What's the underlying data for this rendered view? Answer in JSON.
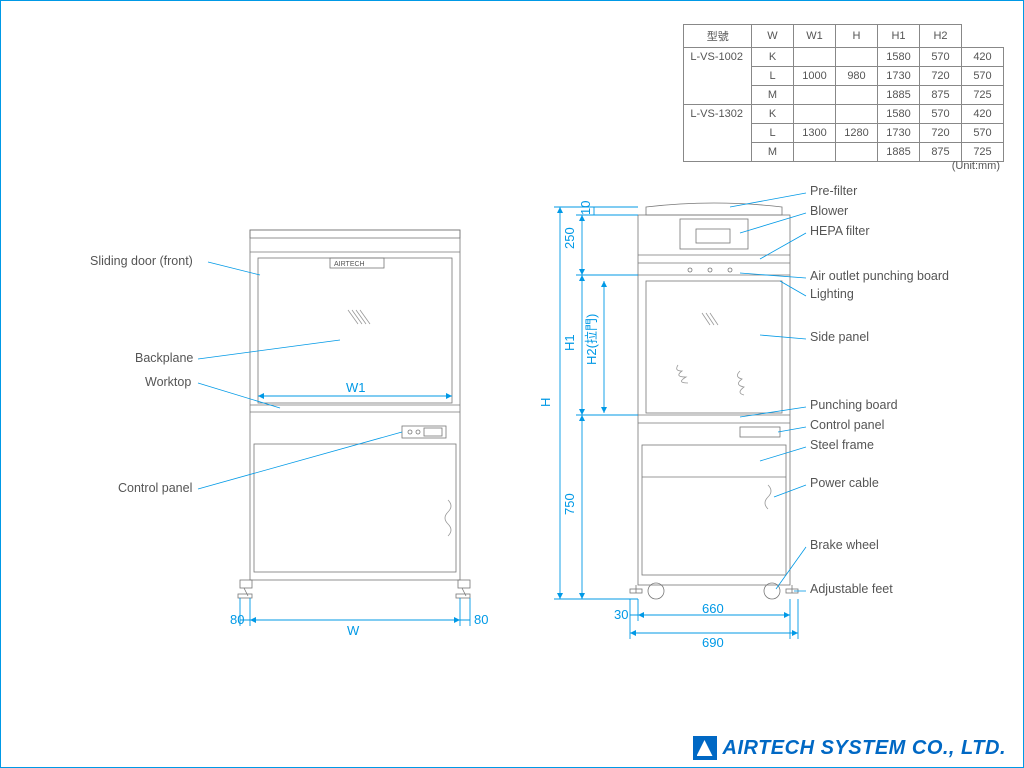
{
  "table": {
    "headers": [
      "型號",
      "W",
      "W1",
      "H",
      "H1",
      "H2"
    ],
    "groups": [
      {
        "model": "L-VS-1002",
        "W": "1000",
        "W1": "980",
        "rows": [
          {
            "size": "K",
            "H": "1580",
            "H1": "570",
            "H2": "420"
          },
          {
            "size": "L",
            "H": "1730",
            "H1": "720",
            "H2": "570"
          },
          {
            "size": "M",
            "H": "1885",
            "H1": "875",
            "H2": "725"
          }
        ]
      },
      {
        "model": "L-VS-1302",
        "W": "1300",
        "W1": "1280",
        "rows": [
          {
            "size": "K",
            "H": "1580",
            "H1": "570",
            "H2": "420"
          },
          {
            "size": "L",
            "H": "1730",
            "H1": "720",
            "H2": "570"
          },
          {
            "size": "M",
            "H": "1885",
            "H1": "875",
            "H2": "725"
          }
        ]
      }
    ],
    "unit": "(Unit:mm)"
  },
  "company": "AIRTECH SYSTEM CO., LTD.",
  "front": {
    "labels": {
      "sliding_door": "Sliding door (front)",
      "backplane": "Backplane",
      "worktop": "Worktop",
      "control_panel": "Control panel",
      "logo": "AIRTECH"
    },
    "dims": {
      "W": "W",
      "W1": "W1",
      "e80l": "80",
      "e80r": "80"
    }
  },
  "side": {
    "labels": {
      "pre_filter": "Pre-filter",
      "blower": "Blower",
      "hepa": "HEPA filter",
      "air_outlet": "Air outlet punching board",
      "lighting": "Lighting",
      "side_panel": "Side panel",
      "punching_board": "Punching board",
      "control_panel": "Control panel",
      "steel_frame": "Steel frame",
      "power_cable": "Power cable",
      "brake_wheel": "Brake wheel",
      "adj_feet": "Adjustable feet"
    },
    "dims": {
      "H": "H",
      "H1": "H1",
      "H2": "H2(拉門)",
      "d250": "250",
      "d10": "10",
      "d750": "750",
      "d30": "30",
      "d660": "660",
      "d690": "690"
    }
  },
  "style": {
    "blue": "#0099e6",
    "gray": "#777",
    "text_gray": "#555",
    "line_w": 0.8,
    "font_size_label": 12.5,
    "font_size_dim": 13
  }
}
